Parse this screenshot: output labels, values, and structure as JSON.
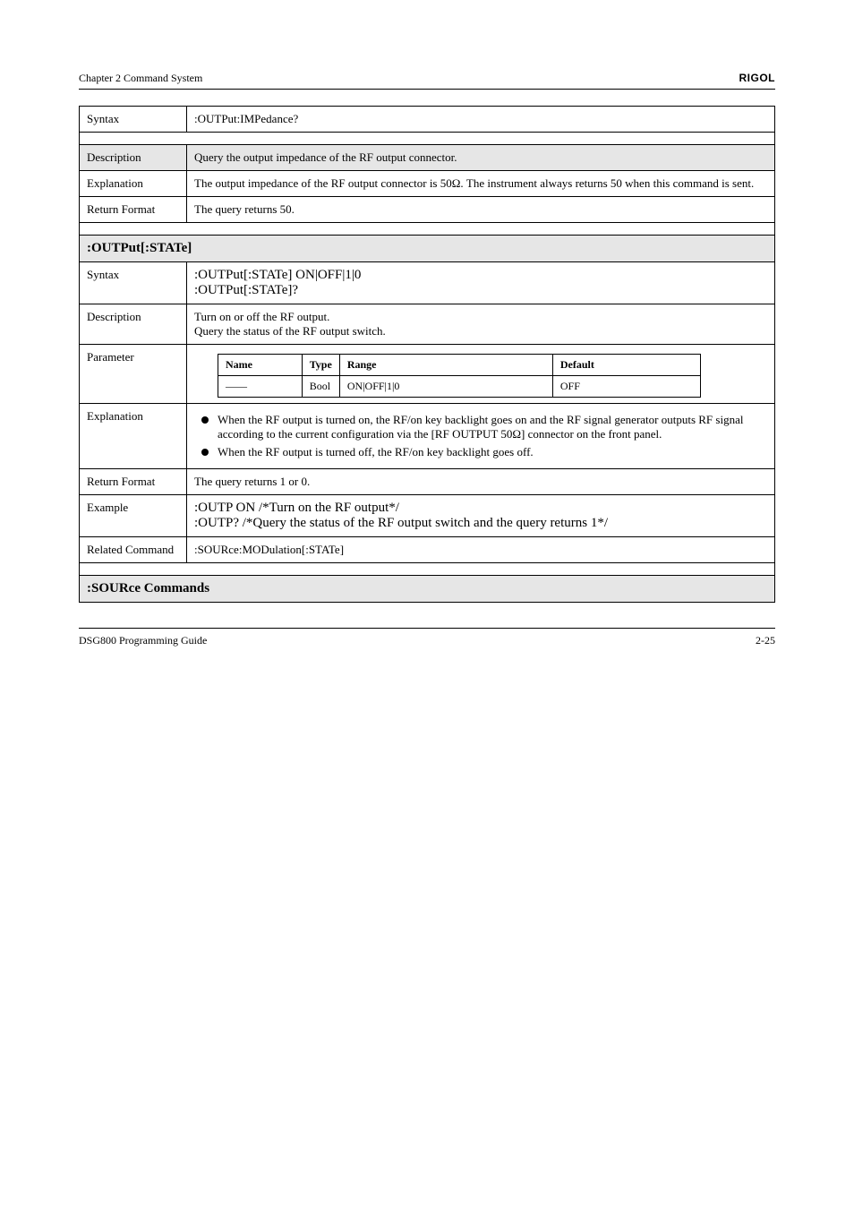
{
  "header": {
    "chapter": "Chapter 2 Command System",
    "brand": "RIGOL"
  },
  "footer": {
    "left": "DSG800 Programming Guide",
    "right": "2-25"
  },
  "t": {
    "syntax": "Syntax",
    "syntax_val": ":OUTPut:IMPedance?",
    "description": "Description",
    "desc_val": "Query the output impedance of the RF output connector.",
    "explanation": "Explanation",
    "expl_val": "The output impedance of the RF output connector is 50Ω. The instrument always returns 50 when this command is sent.",
    "return_format": "Return Format",
    "return_val": "The query returns 50.",
    "section2_title": ":OUTPut[:STATe]",
    "syntax2_l1": ":OUTPut[:STATe] ON|OFF|1|0",
    "syntax2_l2": ":OUTPut[:STATe]?",
    "desc2_l1": "Turn on or off the RF output.",
    "desc2_l2": "Query the status of the RF output switch.",
    "parameter": "Parameter",
    "bullet1": "When the RF output is turned on, the RF/on key backlight goes on and the RF signal generator outputs RF signal according to the current configuration via the [RF OUTPUT 50Ω] connector on the front panel.",
    "bullet2": "When the RF output is turned off, the RF/on key backlight goes off.",
    "nested": {
      "h1": "Name",
      "h2": "Type",
      "h3": "Range",
      "h4": "Default",
      "r1c1": "——",
      "r1c2": "Bool",
      "r1c3": "ON|OFF|1|0",
      "r1c4": "OFF"
    },
    "return_val2": "The query returns 1 or 0.",
    "example": "Example",
    "ex1": ":OUTP ON    /*Turn on the RF output*/",
    "ex2": ":OUTP?       /*Query the status of the RF output switch and the query returns 1*/",
    "related": "Related Command",
    "related_val": ":SOURce:MODulation[:STATe]",
    "section3_title": ":SOURce Commands"
  }
}
